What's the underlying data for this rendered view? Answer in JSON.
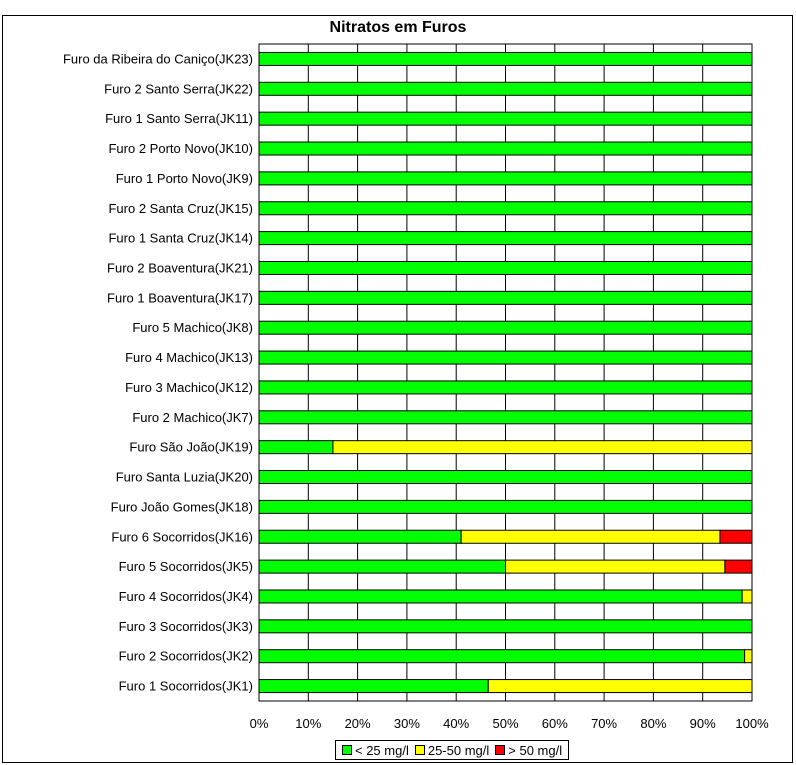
{
  "chart_data": {
    "type": "bar",
    "orientation": "horizontal",
    "stacked": true,
    "percent_stacked": true,
    "title": "Nitratos em Furos",
    "categories": [
      "Furo da Ribeira do Caniço(JK23)",
      "Furo 2 Santo Serra(JK22)",
      "Furo 1 Santo Serra(JK11)",
      "Furo 2 Porto Novo(JK10)",
      "Furo 1 Porto Novo(JK9)",
      "Furo 2 Santa Cruz(JK15)",
      "Furo 1 Santa Cruz(JK14)",
      "Furo 2 Boaventura(JK21)",
      "Furo 1 Boaventura(JK17)",
      "Furo 5 Machico(JK8)",
      "Furo 4 Machico(JK13)",
      "Furo 3 Machico(JK12)",
      "Furo 2 Machico(JK7)",
      "Furo São João(JK19)",
      "Furo Santa Luzia(JK20)",
      "Furo João Gomes(JK18)",
      "Furo 6 Socorridos(JK16)",
      "Furo 5 Socorridos(JK5)",
      "Furo 4 Socorridos(JK4)",
      "Furo 3 Socorridos(JK3)",
      "Furo 2 Socorridos(JK2)",
      "Furo 1 Socorridos(JK1)"
    ],
    "series": [
      {
        "name": "< 25 mg/l",
        "color": "#00ff00",
        "values": [
          100,
          100,
          100,
          100,
          100,
          100,
          100,
          100,
          100,
          100,
          100,
          100,
          100,
          15,
          100,
          100,
          41,
          50,
          98,
          100,
          98.5,
          46.5
        ]
      },
      {
        "name": "25-50 mg/l",
        "color": "#ffff00",
        "values": [
          0,
          0,
          0,
          0,
          0,
          0,
          0,
          0,
          0,
          0,
          0,
          0,
          0,
          85,
          0,
          0,
          52.5,
          44.5,
          2,
          0,
          1.5,
          53.5
        ]
      },
      {
        "name": "> 50 mg/l",
        "color": "#ff0000",
        "values": [
          0,
          0,
          0,
          0,
          0,
          0,
          0,
          0,
          0,
          0,
          0,
          0,
          0,
          0,
          0,
          0,
          6.5,
          5.5,
          0,
          0,
          0,
          0
        ]
      }
    ],
    "xlim": [
      0,
      100
    ],
    "x_ticks": [
      "0%",
      "10%",
      "20%",
      "30%",
      "40%",
      "50%",
      "60%",
      "70%",
      "80%",
      "90%",
      "100%"
    ],
    "grid": true,
    "legend_position": "bottom"
  }
}
